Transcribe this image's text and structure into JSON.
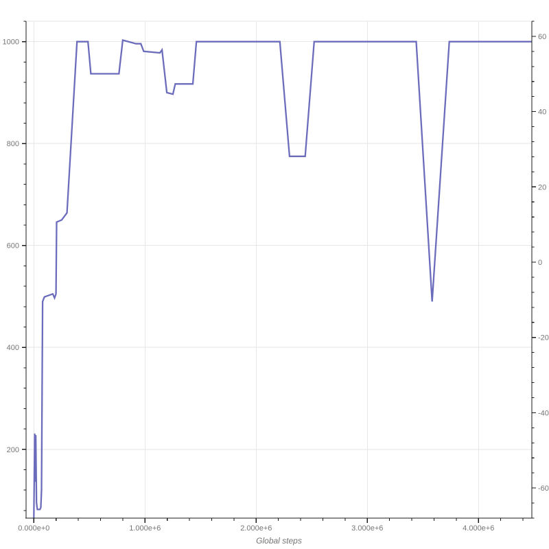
{
  "chart_data": {
    "type": "line",
    "title": "",
    "xlabel": "Global steps",
    "x_axis": {
      "lim": [
        -70000,
        4480000
      ],
      "major_ticks": [
        0,
        1000000,
        2000000,
        3000000,
        4000000
      ],
      "major_labels": [
        "0.000e+0",
        "1.000e+6",
        "2.000e+6",
        "3.000e+6",
        "4.000e+6"
      ],
      "minor_step": 200000,
      "minor_range": [
        0,
        4400000
      ]
    },
    "y_axis_left": {
      "lim": [
        65,
        1040
      ],
      "major_ticks": [
        200,
        400,
        600,
        800,
        1000
      ],
      "major_labels": [
        "200",
        "400",
        "600",
        "800",
        "1000"
      ],
      "minor_step": 40,
      "minor_range": [
        80,
        1040
      ]
    },
    "y_axis_right": {
      "lim": [
        -68,
        64
      ],
      "major_ticks": [
        -60,
        -40,
        -20,
        0,
        20,
        40,
        60
      ],
      "major_labels": [
        "-60",
        "-40",
        "-20",
        "0",
        "20",
        "40",
        "60"
      ],
      "minor_step": 4,
      "minor_range": [
        -68,
        64
      ]
    },
    "grid": {
      "horizontal_at": [
        200,
        400,
        600,
        800,
        1000
      ],
      "vertical_at": [
        0,
        1000000,
        2000000,
        3000000,
        4000000
      ],
      "top_border": true
    },
    "legend": null,
    "colors": {
      "line": "#6c6cbd",
      "grid": "#e6e6e6",
      "axis": "#1a1a1a",
      "labels": "#757575",
      "background": "#ffffff"
    },
    "series": [
      {
        "name": "value",
        "color": "#6c6cbd",
        "points": [
          [
            0,
            65
          ],
          [
            8000,
            231
          ],
          [
            12000,
            136
          ],
          [
            17000,
            228
          ],
          [
            24000,
            95
          ],
          [
            31000,
            82
          ],
          [
            55000,
            82
          ],
          [
            63000,
            86
          ],
          [
            69000,
            120
          ],
          [
            79000,
            490
          ],
          [
            95000,
            499
          ],
          [
            170000,
            505
          ],
          [
            186000,
            497
          ],
          [
            199000,
            505
          ],
          [
            205000,
            646
          ],
          [
            250000,
            650
          ],
          [
            298000,
            664
          ],
          [
            388000,
            1000
          ],
          [
            487000,
            1000
          ],
          [
            513000,
            937
          ],
          [
            765000,
            937
          ],
          [
            800000,
            1003
          ],
          [
            919000,
            996
          ],
          [
            962000,
            996
          ],
          [
            988000,
            981
          ],
          [
            1134000,
            978
          ],
          [
            1153000,
            984
          ],
          [
            1196000,
            900
          ],
          [
            1251000,
            897
          ],
          [
            1272000,
            917
          ],
          [
            1430000,
            917
          ],
          [
            1462000,
            1000
          ],
          [
            2213000,
            1000
          ],
          [
            2300000,
            775
          ],
          [
            2441000,
            775
          ],
          [
            2522000,
            1000
          ],
          [
            3440000,
            1000
          ],
          [
            3583000,
            490
          ],
          [
            3737000,
            1000
          ],
          [
            4480000,
            1000
          ]
        ]
      }
    ]
  }
}
